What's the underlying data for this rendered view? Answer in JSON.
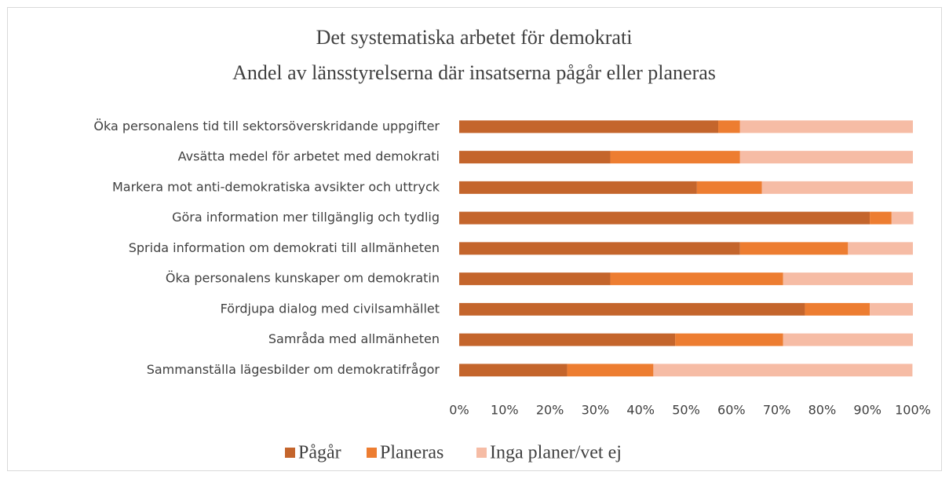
{
  "chart_data": {
    "type": "stacked_barh",
    "title": "Det systematiska arbetet för demokrati",
    "subtitle": "Andel av länsstyrelserna där insatserna pågår eller planeras",
    "categories": [
      "Öka personalens tid till sektorsöverskridande uppgifter",
      "Avsätta medel för arbetet med demokrati",
      "Markera mot anti-demokratiska avsikter och uttryck",
      "Göra information mer tillgänglig och tydlig",
      "Sprida information om demokrati till allmänheten",
      "Öka personalens kunskaper om demokratin",
      "Fördjupa dialog med civilsamhället",
      "Samråda med allmänheten",
      "Sammanställa lägesbilder om demokratifrågor"
    ],
    "series": [
      {
        "name": "Pågår",
        "color": "#c4652c",
        "values": [
          57.1,
          33.3,
          52.4,
          90.5,
          61.9,
          33.3,
          76.2,
          47.6,
          23.8
        ]
      },
      {
        "name": "Planeras",
        "color": "#ed7d31",
        "values": [
          4.8,
          28.6,
          14.3,
          4.8,
          23.8,
          38.1,
          14.3,
          23.8,
          19.0
        ]
      },
      {
        "name": "Inga planer/vet ej",
        "color": "#f6bca5",
        "values": [
          38.1,
          38.1,
          33.3,
          4.8,
          14.3,
          28.6,
          9.5,
          28.6,
          57.1
        ]
      }
    ],
    "xlim": [
      0,
      100
    ],
    "xticks": [
      {
        "value": 0,
        "label": "0%"
      },
      {
        "value": 10,
        "label": "10%"
      },
      {
        "value": 20,
        "label": "20%"
      },
      {
        "value": 30,
        "label": "30%"
      },
      {
        "value": 40,
        "label": "40%"
      },
      {
        "value": 50,
        "label": "50%"
      },
      {
        "value": 60,
        "label": "60%"
      },
      {
        "value": 70,
        "label": "70%"
      },
      {
        "value": 80,
        "label": "80%"
      },
      {
        "value": 90,
        "label": "90%"
      },
      {
        "value": 100,
        "label": "100%"
      }
    ],
    "legend": "bottom"
  }
}
